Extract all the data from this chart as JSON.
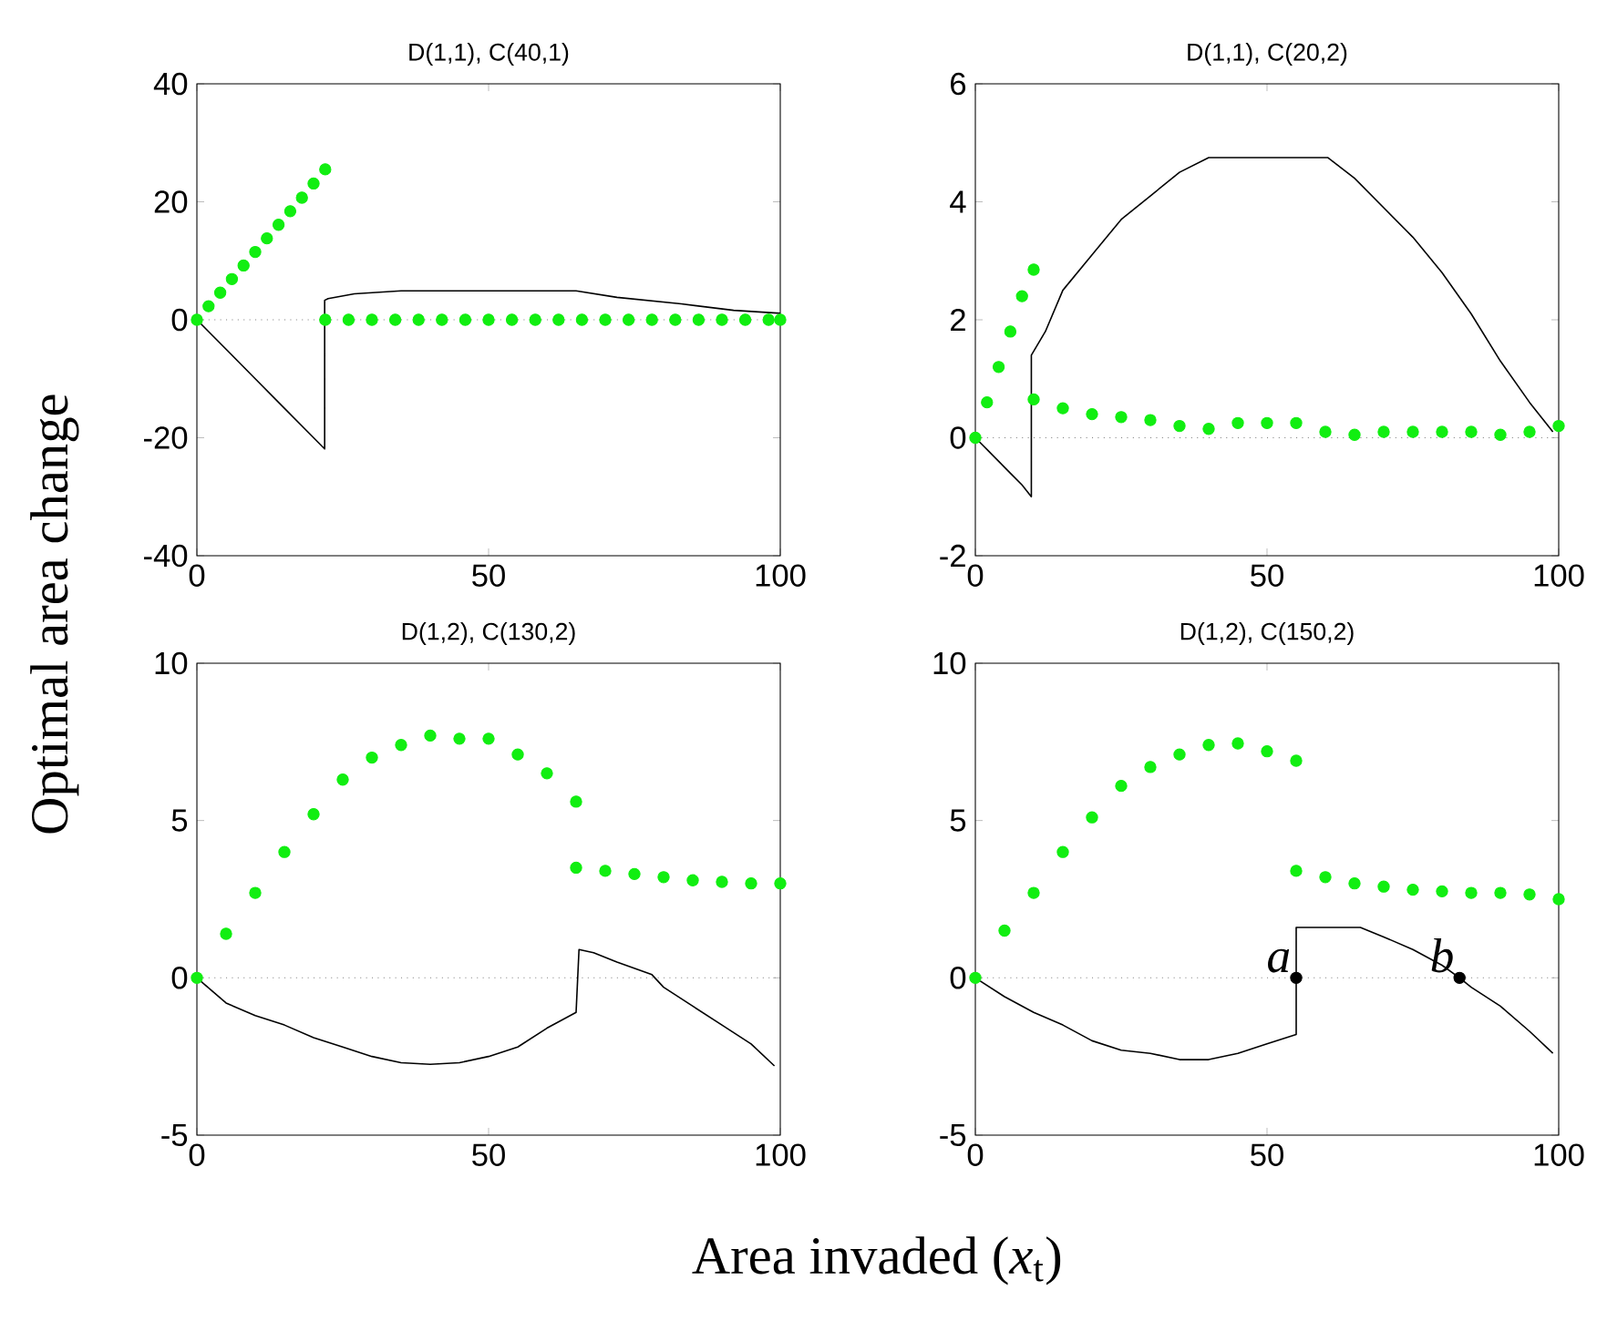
{
  "chart_data": [
    {
      "type": "line",
      "title": "D(1,1), C(40,1)",
      "ylabel": "Optimal area change",
      "xlim": [
        0,
        100
      ],
      "ylim": [
        -40,
        40
      ],
      "xticks": [
        0,
        50,
        100
      ],
      "yticks": [
        -40,
        -20,
        0,
        20,
        40
      ],
      "ref_lines": [
        {
          "axis": "y",
          "value": 0,
          "color": "#808080",
          "line_style": "dotted"
        }
      ],
      "series": [
        {
          "type": "line",
          "color": "#000000",
          "x": [
            0,
            5,
            10,
            15,
            21.9,
            21.9,
            22.5,
            27,
            35,
            50,
            65,
            72,
            83,
            92,
            100
          ],
          "values": [
            0,
            -5,
            -10,
            -15,
            -21.9,
            3.3,
            3.6,
            4.4,
            4.9,
            4.9,
            4.9,
            3.8,
            2.7,
            1.6,
            1.1
          ]
        },
        {
          "type": "scatter",
          "marker": "circle",
          "color": "#11ee11",
          "x": [
            0,
            2,
            4,
            6,
            8,
            10,
            12,
            14,
            16,
            18,
            20,
            22,
            22,
            26,
            30,
            34,
            38,
            42,
            46,
            50,
            54,
            58,
            62,
            66,
            70,
            74,
            78,
            82,
            86,
            90,
            94,
            98,
            100
          ],
          "values": [
            0,
            2.3,
            4.6,
            6.9,
            9.2,
            11.5,
            13.8,
            16.1,
            18.4,
            20.7,
            23.1,
            25.5,
            0,
            0,
            0,
            0,
            0,
            0,
            0,
            0,
            0,
            0,
            0,
            0,
            0,
            0,
            0,
            0,
            0,
            0,
            0,
            0,
            0
          ]
        }
      ]
    },
    {
      "type": "line",
      "title": "D(1,1), C(20,2)",
      "xlim": [
        0,
        100
      ],
      "ylim": [
        -2,
        6
      ],
      "xticks": [
        0,
        50,
        100
      ],
      "yticks": [
        -2,
        0,
        2,
        4,
        6
      ],
      "ref_lines": [
        {
          "axis": "y",
          "value": 0,
          "color": "#808080",
          "line_style": "dotted"
        }
      ],
      "series": [
        {
          "type": "line",
          "color": "#000000",
          "x": [
            0,
            2,
            4,
            6,
            8,
            9.6,
            9.6,
            12,
            15,
            20,
            25,
            30,
            35,
            40,
            60.4,
            65,
            70,
            75,
            80,
            85,
            90,
            95,
            99
          ],
          "values": [
            0,
            -0.2,
            -0.4,
            -0.6,
            -0.8,
            -1.0,
            1.4,
            1.8,
            2.5,
            3.1,
            3.7,
            4.1,
            4.5,
            4.75,
            4.75,
            4.4,
            3.9,
            3.4,
            2.8,
            2.1,
            1.3,
            0.6,
            0.1
          ]
        },
        {
          "type": "scatter",
          "marker": "circle",
          "color": "#11ee11",
          "x": [
            0,
            2,
            4,
            6,
            8,
            10,
            10,
            15,
            20,
            25,
            30,
            35,
            40,
            45,
            50,
            55,
            60,
            65,
            70,
            75,
            80,
            85,
            90,
            95,
            100
          ],
          "values": [
            0,
            0.6,
            1.2,
            1.8,
            2.4,
            2.85,
            0.65,
            0.5,
            0.4,
            0.35,
            0.3,
            0.2,
            0.15,
            0.25,
            0.25,
            0.25,
            0.1,
            0.05,
            0.1,
            0.1,
            0.1,
            0.1,
            0.05,
            0.1,
            0.2
          ]
        }
      ]
    },
    {
      "type": "line",
      "title": "D(1,2), C(130,2)",
      "xlabel": "Area invaded (*x*$_{t}$)",
      "xlim": [
        0,
        100
      ],
      "ylim": [
        -5,
        10
      ],
      "xticks": [
        0,
        50,
        100
      ],
      "yticks": [
        -5,
        0,
        5,
        10
      ],
      "ref_lines": [
        {
          "axis": "y",
          "value": 0,
          "color": "#808080",
          "line_style": "dotted"
        }
      ],
      "series": [
        {
          "type": "line",
          "color": "#000000",
          "x": [
            0,
            5,
            10,
            15,
            20,
            25,
            30,
            35,
            40,
            45,
            50,
            55,
            60,
            65,
            65.5,
            68,
            72,
            78,
            80,
            85,
            90,
            95,
            99
          ],
          "values": [
            0,
            -0.8,
            -1.2,
            -1.5,
            -1.9,
            -2.2,
            -2.5,
            -2.7,
            -2.75,
            -2.7,
            -2.5,
            -2.2,
            -1.6,
            -1.1,
            0.9,
            0.8,
            0.5,
            0.1,
            -0.3,
            -0.9,
            -1.5,
            -2.1,
            -2.8
          ]
        },
        {
          "type": "scatter",
          "marker": "circle",
          "color": "#11ee11",
          "x": [
            0,
            5,
            10,
            15,
            20,
            25,
            30,
            35,
            40,
            45,
            50,
            55,
            60,
            65,
            65,
            70,
            75,
            80,
            85,
            90,
            95,
            100
          ],
          "values": [
            0,
            1.4,
            2.7,
            4.0,
            5.2,
            6.3,
            7.0,
            7.4,
            7.7,
            7.6,
            7.6,
            7.1,
            6.5,
            5.6,
            3.5,
            3.4,
            3.3,
            3.2,
            3.1,
            3.05,
            3.0,
            3.0
          ]
        }
      ]
    },
    {
      "type": "line",
      "title": "D(1,2), C(150,2)",
      "xlim": [
        0,
        100
      ],
      "ylim": [
        -5,
        10
      ],
      "xticks": [
        0,
        50,
        100
      ],
      "yticks": [
        -5,
        0,
        5,
        10
      ],
      "ref_lines": [
        {
          "axis": "y",
          "value": 0,
          "color": "#808080",
          "line_style": "dotted"
        }
      ],
      "annotations": [
        {
          "text": "a",
          "x": 55,
          "y": 0
        },
        {
          "text": "b",
          "x": 83,
          "y": 0
        }
      ],
      "series": [
        {
          "type": "line",
          "color": "#000000",
          "x": [
            0,
            5,
            10,
            15,
            20,
            25,
            30,
            35,
            40,
            45,
            50,
            55,
            55,
            66,
            70,
            75,
            80,
            83,
            85,
            90,
            95,
            99
          ],
          "values": [
            0,
            -0.6,
            -1.1,
            -1.5,
            -2.0,
            -2.3,
            -2.4,
            -2.6,
            -2.6,
            -2.4,
            -2.1,
            -1.8,
            1.6,
            1.6,
            1.3,
            0.9,
            0.4,
            0,
            -0.3,
            -0.9,
            -1.7,
            -2.4
          ]
        },
        {
          "type": "scatter",
          "marker": "circle",
          "color": "#11ee11",
          "x": [
            0,
            5,
            10,
            15,
            20,
            25,
            30,
            35,
            40,
            45,
            50,
            55,
            55,
            60,
            65,
            70,
            75,
            80,
            85,
            90,
            95,
            100
          ],
          "values": [
            0,
            1.5,
            2.7,
            4.0,
            5.1,
            6.1,
            6.7,
            7.1,
            7.4,
            7.45,
            7.2,
            6.9,
            3.4,
            3.2,
            3.0,
            2.9,
            2.8,
            2.75,
            2.7,
            2.7,
            2.65,
            2.5
          ]
        },
        {
          "type": "scatter",
          "marker": "circle",
          "color": "#000000",
          "x": [
            55,
            83
          ],
          "values": [
            0,
            0
          ]
        }
      ]
    }
  ]
}
